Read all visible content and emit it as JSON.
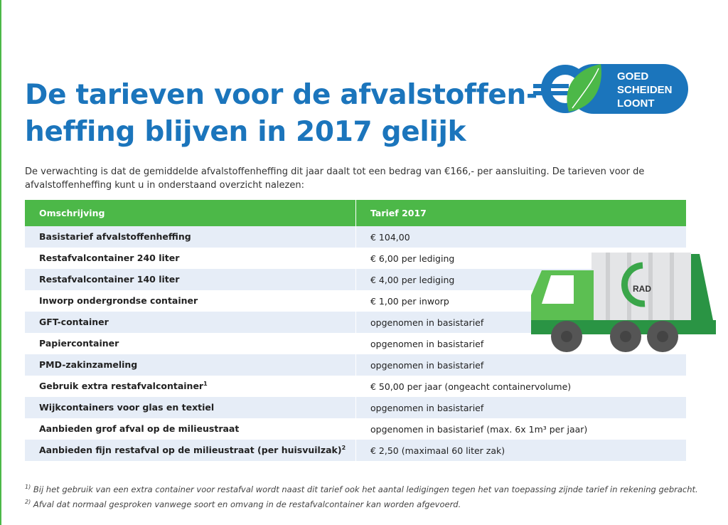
{
  "title_line1": "De tarieven voor de afvalstoffen-",
  "title_line2": "heffing blijven in 2017 gelijk",
  "intro": "De verwachting is dat de gemiddelde afvalstoffenheffing dit jaar daalt tot een bedrag van €166,- per aansluiting. De tarieven voor de afvalstoffenheffing kunt u in onderstaand overzicht nalezen:",
  "logo": {
    "line1": "GOED",
    "line2": "SCHEIDEN",
    "line3": "LOONT",
    "colors": {
      "blue": "#1b75bc",
      "green": "#4cb848"
    }
  },
  "truck_label": "RAD",
  "table": {
    "headers": [
      "Omschrijving",
      "Tarief 2017"
    ],
    "rows": [
      {
        "desc": "Basistarief afvalstoffenheffing",
        "sup": "",
        "tarief": "€ 104,00"
      },
      {
        "desc": "Restafvalcontainer 240 liter",
        "sup": "",
        "tarief": "€ 6,00 per lediging"
      },
      {
        "desc": "Restafvalcontainer 140 liter",
        "sup": "",
        "tarief": "€ 4,00 per lediging"
      },
      {
        "desc": "Inworp ondergrondse container",
        "sup": "",
        "tarief": "€ 1,00 per inworp"
      },
      {
        "desc": "GFT-container",
        "sup": "",
        "tarief": "opgenomen in basistarief"
      },
      {
        "desc": "Papiercontainer",
        "sup": "",
        "tarief": "opgenomen in basistarief"
      },
      {
        "desc": "PMD-zakinzameling",
        "sup": "",
        "tarief": "opgenomen in basistarief"
      },
      {
        "desc": "Gebruik extra restafvalcontainer",
        "sup": "1",
        "tarief": "€ 50,00 per jaar  (ongeacht containervolume)"
      },
      {
        "desc": "Wijkcontainers voor glas en textiel",
        "sup": "",
        "tarief": "opgenomen in basistarief"
      },
      {
        "desc": "Aanbieden grof afval op de milieustraat",
        "sup": "",
        "tarief": "opgenomen in basistarief  (max. 6x 1m³ per jaar)"
      },
      {
        "desc": "Aanbieden fijn restafval op de milieustraat (per huisvuilzak)",
        "sup": "2",
        "tarief": "€ 2,50  (maximaal 60 liter zak)"
      }
    ]
  },
  "footnotes": [
    {
      "mark": "1)",
      "text": "Bij het gebruik van een extra container voor restafval wordt naast dit tarief ook het aantal ledigingen tegen het van toepassing zijnde tarief in rekening gebracht."
    },
    {
      "mark": "2)",
      "text": "Afval dat normaal gesproken vanwege soort en omvang in de restafvalcontainer kan worden afgevoerd."
    }
  ]
}
